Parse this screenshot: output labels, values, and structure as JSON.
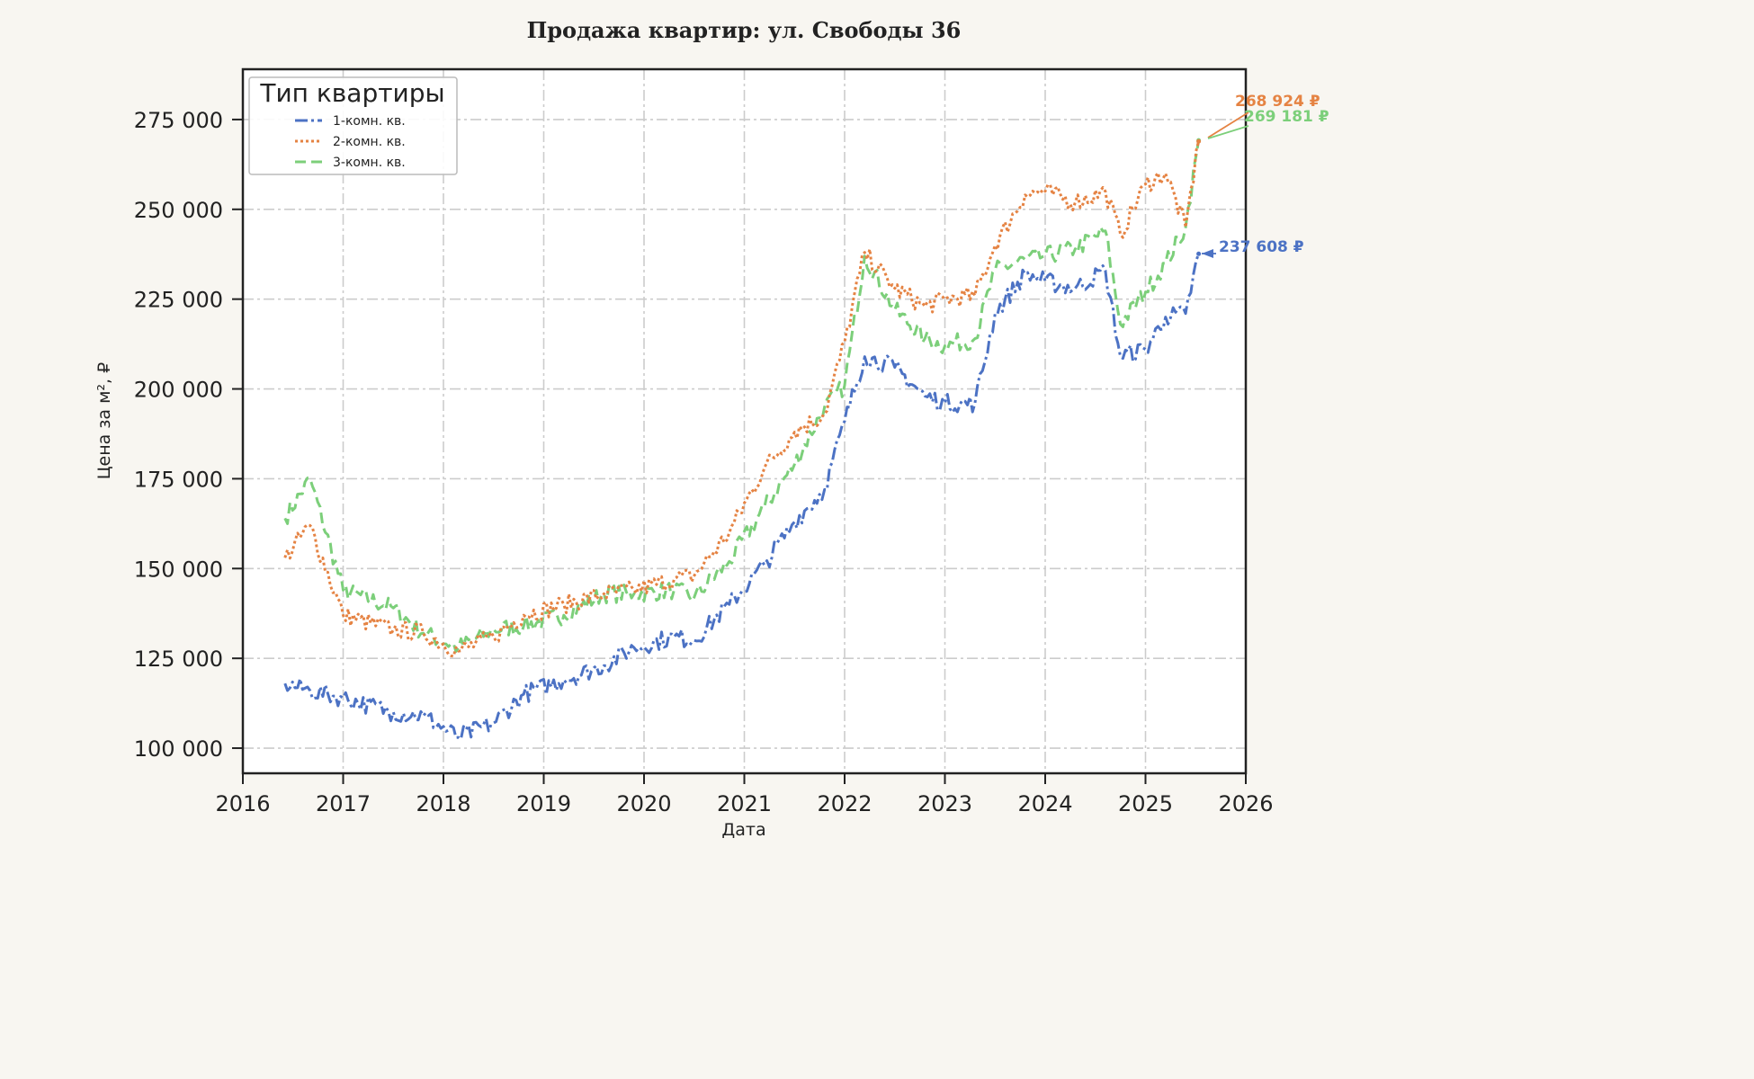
{
  "chart_data": {
    "type": "line",
    "title": "Продажа квартир: ул. Свободы 36",
    "xlabel": "Дата",
    "ylabel": "Цена за м², ₽",
    "xlim": [
      2016,
      2026
    ],
    "ylim": [
      93000,
      289000
    ],
    "x_ticks": [
      "2016",
      "2017",
      "2018",
      "2019",
      "2020",
      "2021",
      "2022",
      "2023",
      "2024",
      "2025",
      "2026"
    ],
    "y_ticks": [
      100000,
      125000,
      150000,
      175000,
      200000,
      225000,
      250000,
      275000
    ],
    "y_tick_labels": [
      "100 000",
      "125 000",
      "150 000",
      "175 000",
      "200 000",
      "225 000",
      "250 000",
      "275 000"
    ],
    "grid": true,
    "legend": {
      "title": "Тип квартиры",
      "position": "top-left"
    },
    "x": [
      2016.42,
      2016.67,
      2017.0,
      2017.5,
      2017.8,
      2018.15,
      2018.5,
      2018.8,
      2019.2,
      2019.6,
      2019.9,
      2020.3,
      2020.5,
      2020.85,
      2021.2,
      2021.5,
      2021.8,
      2022.0,
      2022.2,
      2022.5,
      2022.8,
      2023.0,
      2023.3,
      2023.5,
      2023.8,
      2024.0,
      2024.3,
      2024.6,
      2024.75,
      2025.0,
      2025.2,
      2025.4,
      2025.53
    ],
    "series": [
      {
        "name": "1-комн. кв.",
        "color": "#4c72c4",
        "dash": "14 4 3 4",
        "values": [
          118000,
          116000,
          114000,
          110000,
          109000,
          103000,
          107000,
          115000,
          119000,
          123000,
          128000,
          131000,
          130000,
          140000,
          151000,
          163000,
          172000,
          191000,
          209000,
          206000,
          198000,
          196000,
          196000,
          221000,
          232000,
          230000,
          228000,
          233000,
          209000,
          211000,
          220000,
          221000,
          237608
        ]
      },
      {
        "name": "2-комн. кв.",
        "color": "#e58343",
        "dash": "3 3",
        "values": [
          153000,
          162000,
          137000,
          133000,
          132000,
          127000,
          131000,
          137000,
          140000,
          143000,
          144000,
          147000,
          148000,
          160000,
          178000,
          188000,
          193000,
          213000,
          238000,
          228000,
          223000,
          225000,
          226000,
          240000,
          254000,
          255000,
          252000,
          255000,
          243000,
          257000,
          260000,
          245000,
          268924
        ]
      },
      {
        "name": "3-комн. кв.",
        "color": "#7ccf7a",
        "dash": "12 6",
        "values": [
          164000,
          175000,
          144000,
          139000,
          132000,
          128000,
          133000,
          134000,
          137000,
          143000,
          143000,
          144000,
          142000,
          152000,
          167000,
          179000,
          195000,
          201000,
          237000,
          222000,
          214000,
          212000,
          214000,
          233000,
          236000,
          237000,
          239000,
          244000,
          218000,
          227000,
          235000,
          245000,
          269181
        ]
      }
    ],
    "annotations": [
      {
        "text": "268 924 ₽",
        "color": "#e58343"
      },
      {
        "text": "269 181 ₽",
        "color": "#7ccf7a"
      },
      {
        "text": "237 608 ₽",
        "color": "#4c72c4"
      }
    ]
  }
}
